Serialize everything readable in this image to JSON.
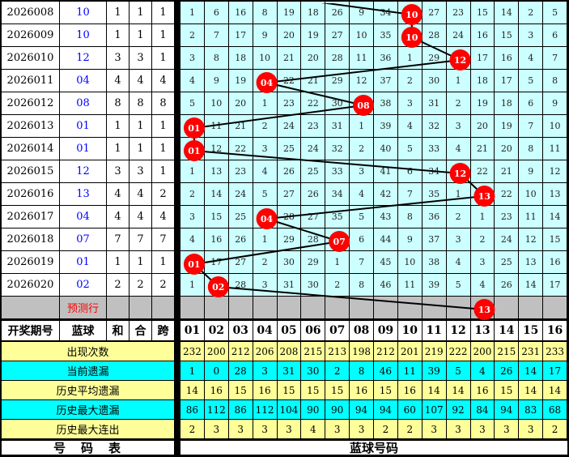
{
  "colors": {
    "grid_bg": "#CCFFFF",
    "circle_fill": "#FF0000",
    "circle_text": "#FFFFFF",
    "line": "#000000",
    "stat_yellow": "#FFFF99",
    "stat_cyan": "#00FFFF",
    "prediction_bg": "#C0C0C0",
    "blue_ball_text": "#0000FF",
    "prediction_label_text": "#FF0000"
  },
  "chart_data": {
    "type": "table",
    "left_headers": [
      "开奖期号",
      "蓝球",
      "和",
      "合",
      "跨"
    ],
    "ball_columns": [
      "01",
      "02",
      "03",
      "04",
      "05",
      "06",
      "07",
      "08",
      "09",
      "10",
      "11",
      "12",
      "13",
      "14",
      "15",
      "16"
    ],
    "rows": [
      {
        "period": "2026008",
        "ball": "10",
        "ball_col": 10,
        "lhk": [
          1,
          1,
          1
        ],
        "cells": [
          1,
          6,
          16,
          8,
          19,
          18,
          26,
          9,
          34,
          "10",
          27,
          23,
          15,
          14,
          2,
          5
        ]
      },
      {
        "period": "2026009",
        "ball": "10",
        "ball_col": 10,
        "lhk": [
          1,
          1,
          1
        ],
        "cells": [
          2,
          7,
          17,
          9,
          20,
          19,
          27,
          10,
          35,
          "10",
          28,
          24,
          16,
          15,
          3,
          6
        ]
      },
      {
        "period": "2026010",
        "ball": "12",
        "ball_col": 12,
        "lhk": [
          3,
          3,
          1
        ],
        "cells": [
          3,
          8,
          18,
          10,
          21,
          20,
          28,
          11,
          36,
          1,
          29,
          "12",
          17,
          16,
          4,
          7
        ]
      },
      {
        "period": "2026011",
        "ball": "04",
        "ball_col": 4,
        "lhk": [
          4,
          4,
          4
        ],
        "cells": [
          4,
          9,
          19,
          "04",
          22,
          21,
          29,
          12,
          37,
          2,
          30,
          1,
          18,
          17,
          5,
          8
        ]
      },
      {
        "period": "2026012",
        "ball": "08",
        "ball_col": 8,
        "lhk": [
          8,
          8,
          8
        ],
        "cells": [
          5,
          10,
          20,
          1,
          23,
          22,
          30,
          "08",
          38,
          3,
          31,
          2,
          19,
          18,
          6,
          9
        ]
      },
      {
        "period": "2026013",
        "ball": "01",
        "ball_col": 1,
        "lhk": [
          1,
          1,
          1
        ],
        "cells": [
          "01",
          11,
          21,
          2,
          24,
          23,
          31,
          1,
          39,
          4,
          32,
          3,
          20,
          19,
          7,
          10
        ]
      },
      {
        "period": "2026014",
        "ball": "01",
        "ball_col": 1,
        "lhk": [
          1,
          1,
          1
        ],
        "cells": [
          "01",
          12,
          22,
          3,
          25,
          24,
          32,
          2,
          40,
          5,
          33,
          4,
          21,
          20,
          8,
          11
        ]
      },
      {
        "period": "2026015",
        "ball": "12",
        "ball_col": 12,
        "lhk": [
          3,
          3,
          1
        ],
        "cells": [
          1,
          13,
          23,
          4,
          26,
          25,
          33,
          3,
          41,
          6,
          34,
          "12",
          22,
          21,
          9,
          12
        ]
      },
      {
        "period": "2026016",
        "ball": "13",
        "ball_col": 13,
        "lhk": [
          4,
          4,
          2
        ],
        "cells": [
          2,
          14,
          24,
          5,
          27,
          26,
          34,
          4,
          42,
          7,
          35,
          1,
          "13",
          22,
          10,
          13
        ]
      },
      {
        "period": "2026017",
        "ball": "04",
        "ball_col": 4,
        "lhk": [
          4,
          4,
          4
        ],
        "cells": [
          3,
          15,
          25,
          "04",
          28,
          27,
          35,
          5,
          43,
          8,
          36,
          2,
          1,
          23,
          11,
          14
        ]
      },
      {
        "period": "2026018",
        "ball": "07",
        "ball_col": 7,
        "lhk": [
          7,
          7,
          7
        ],
        "cells": [
          4,
          16,
          26,
          1,
          29,
          28,
          "07",
          6,
          44,
          9,
          37,
          3,
          2,
          24,
          12,
          15
        ]
      },
      {
        "period": "2026019",
        "ball": "01",
        "ball_col": 1,
        "lhk": [
          1,
          1,
          1
        ],
        "cells": [
          "01",
          17,
          27,
          2,
          30,
          29,
          1,
          7,
          45,
          10,
          38,
          4,
          3,
          25,
          13,
          16
        ]
      },
      {
        "period": "2026020",
        "ball": "02",
        "ball_col": 2,
        "lhk": [
          2,
          2,
          2
        ],
        "cells": [
          1,
          "02",
          28,
          3,
          31,
          30,
          2,
          8,
          46,
          11,
          39,
          5,
          4,
          26,
          14,
          17
        ]
      }
    ],
    "prediction": {
      "label": "预测行",
      "ball": "13",
      "ball_col": 13
    },
    "stats_rows": [
      {
        "label": "出现次数",
        "bg": "yellow",
        "values": [
          232,
          200,
          212,
          206,
          208,
          215,
          213,
          198,
          212,
          201,
          219,
          222,
          200,
          215,
          231,
          233
        ]
      },
      {
        "label": "当前遗漏",
        "bg": "cyan",
        "values": [
          1,
          0,
          28,
          3,
          31,
          30,
          2,
          8,
          46,
          11,
          39,
          5,
          4,
          26,
          14,
          17
        ]
      },
      {
        "label": "历史平均遗漏",
        "bg": "yellow",
        "values": [
          14,
          16,
          15,
          16,
          15,
          15,
          15,
          16,
          15,
          16,
          14,
          14,
          16,
          15,
          14,
          14
        ]
      },
      {
        "label": "历史最大遗漏",
        "bg": "cyan",
        "values": [
          86,
          112,
          86,
          112,
          104,
          90,
          90,
          94,
          94,
          60,
          107,
          92,
          84,
          94,
          83,
          68
        ]
      },
      {
        "label": "历史最大连出",
        "bg": "yellow",
        "values": [
          2,
          3,
          3,
          3,
          3,
          4,
          3,
          3,
          2,
          2,
          3,
          3,
          3,
          3,
          3,
          2
        ]
      }
    ],
    "footer": {
      "left": "号　码　表",
      "right": "蓝球号码"
    }
  }
}
